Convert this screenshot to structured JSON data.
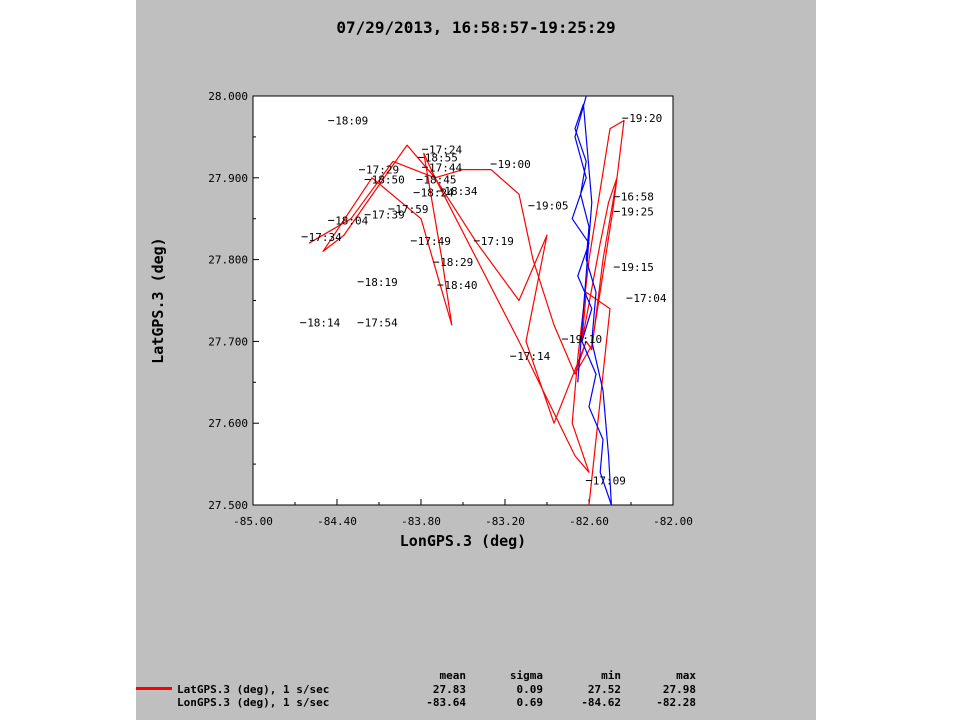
{
  "chart_data": {
    "type": "line",
    "title": "07/29/2013, 16:58:57-19:25:29",
    "xlabel": "LonGPS.3 (deg)",
    "ylabel": "LatGPS.3 (deg)",
    "xlim": [
      -85.0,
      -82.0
    ],
    "ylim": [
      27.5,
      28.0
    ],
    "x_ticks": [
      "-85.00",
      "-84.40",
      "-83.80",
      "-83.20",
      "-82.60",
      "-82.00"
    ],
    "y_ticks": [
      "27.500",
      "27.600",
      "27.700",
      "27.800",
      "27.900",
      "28.000"
    ],
    "series": [
      {
        "color": "#ff0000",
        "x": [
          -82.6,
          -82.55,
          -82.45,
          -82.62,
          -82.65,
          -82.52,
          -82.46,
          -82.4,
          -82.43,
          -82.58,
          -82.7,
          -82.62,
          -82.85,
          -83.05,
          -82.9,
          -83.1,
          -83.4,
          -83.7,
          -83.78,
          -83.65,
          -83.58,
          -83.8,
          -84.15,
          -84.5,
          -84.35,
          -83.9,
          -83.7,
          -83.5,
          -83.3,
          -83.1,
          -83.0,
          -82.85,
          -82.7,
          -82.62,
          -82.58,
          -82.5,
          -82.4,
          -82.35,
          -82.45,
          -82.6,
          -82.68,
          -82.72,
          -82.6,
          -82.7,
          -83.1,
          -83.7,
          -84.0,
          -84.3,
          -84.6
        ],
        "y": [
          27.5,
          27.58,
          27.74,
          27.76,
          27.7,
          27.82,
          27.87,
          27.9,
          27.86,
          27.695,
          27.66,
          27.7,
          27.6,
          27.7,
          27.83,
          27.75,
          27.82,
          27.9,
          27.93,
          27.8,
          27.72,
          27.85,
          27.9,
          27.81,
          27.83,
          27.94,
          27.9,
          27.91,
          27.91,
          27.88,
          27.8,
          27.72,
          27.66,
          27.7,
          27.69,
          27.8,
          27.9,
          27.97,
          27.96,
          27.8,
          27.68,
          27.6,
          27.54,
          27.56,
          27.7,
          27.9,
          27.92,
          27.85,
          27.82
        ]
      },
      {
        "color": "#0000ff",
        "x": [
          -82.62,
          -82.7,
          -82.62,
          -82.72,
          -82.6,
          -82.68,
          -82.58,
          -82.65,
          -82.55,
          -82.6,
          -82.5,
          -82.52,
          -82.44,
          -82.46,
          -82.5,
          -82.58,
          -82.55,
          -82.62,
          -82.6,
          -82.66,
          -82.62,
          -82.7,
          -82.64,
          -82.58,
          -82.68
        ],
        "y": [
          28.0,
          27.95,
          27.9,
          27.85,
          27.82,
          27.78,
          27.74,
          27.7,
          27.66,
          27.62,
          27.58,
          27.54,
          27.5,
          27.56,
          27.64,
          27.7,
          27.76,
          27.8,
          27.84,
          27.88,
          27.92,
          27.96,
          27.99,
          27.87,
          27.65
        ]
      }
    ],
    "annotations": [
      {
        "text": "18:09",
        "x": -84.42,
        "y": 27.965
      },
      {
        "text": "17:24",
        "x": -83.75,
        "y": 27.93
      },
      {
        "text": "18:55",
        "x": -83.78,
        "y": 27.92
      },
      {
        "text": "19:00",
        "x": -83.26,
        "y": 27.912
      },
      {
        "text": "17:29",
        "x": -84.2,
        "y": 27.905
      },
      {
        "text": "17:44",
        "x": -83.75,
        "y": 27.908
      },
      {
        "text": "18:50",
        "x": -84.16,
        "y": 27.893
      },
      {
        "text": "18:45",
        "x": -83.79,
        "y": 27.893
      },
      {
        "text": "18:24",
        "x": -83.81,
        "y": 27.877
      },
      {
        "text": "18:34",
        "x": -83.64,
        "y": 27.879
      },
      {
        "text": "19:05",
        "x": -82.99,
        "y": 27.861
      },
      {
        "text": "17:59",
        "x": -83.99,
        "y": 27.857
      },
      {
        "text": "17:39",
        "x": -84.16,
        "y": 27.85
      },
      {
        "text": "18:04",
        "x": -84.42,
        "y": 27.843
      },
      {
        "text": "17:34",
        "x": -84.61,
        "y": 27.823
      },
      {
        "text": "17:49",
        "x": -83.83,
        "y": 27.818
      },
      {
        "text": "17:19",
        "x": -83.38,
        "y": 27.818
      },
      {
        "text": "18:29",
        "x": -83.67,
        "y": 27.792
      },
      {
        "text": "18:40",
        "x": -83.64,
        "y": 27.764
      },
      {
        "text": "18:19",
        "x": -84.21,
        "y": 27.768
      },
      {
        "text": "18:14",
        "x": -84.62,
        "y": 27.718
      },
      {
        "text": "17:54",
        "x": -84.21,
        "y": 27.718
      },
      {
        "text": "19:10",
        "x": -82.75,
        "y": 27.698
      },
      {
        "text": "17:14",
        "x": -83.12,
        "y": 27.677
      },
      {
        "text": "17:09",
        "x": -82.58,
        "y": 27.525
      },
      {
        "text": "19:20",
        "x": -82.32,
        "y": 27.968
      },
      {
        "text": "16:58",
        "x": -82.38,
        "y": 27.872
      },
      {
        "text": "19:25",
        "x": -82.38,
        "y": 27.854
      },
      {
        "text": "19:15",
        "x": -82.38,
        "y": 27.786
      },
      {
        "text": "17:04",
        "x": -82.29,
        "y": 27.748
      }
    ]
  },
  "stats": {
    "headers": {
      "mean": "mean",
      "sigma": "sigma",
      "min": "min",
      "max": "max"
    },
    "rows": [
      {
        "label": "LatGPS.3 (deg), 1 s/sec",
        "mean": "27.83",
        "sigma": "0.09",
        "min": "27.52",
        "max": "27.98",
        "color": "#ff0000"
      },
      {
        "label": "LonGPS.3 (deg), 1 s/sec",
        "mean": "-83.64",
        "sigma": "0.69",
        "min": "-84.62",
        "max": "-82.28"
      }
    ]
  }
}
